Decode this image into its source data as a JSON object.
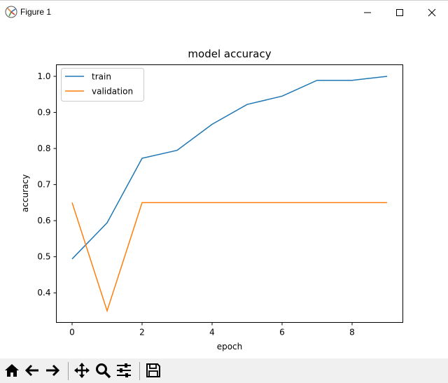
{
  "window": {
    "title": "Figure 1"
  },
  "toolbar": {
    "buttons": [
      "home-icon",
      "back-arrow-icon",
      "forward-arrow-icon",
      "pan-icon",
      "zoom-icon",
      "subplots-config-icon",
      "save-icon"
    ]
  },
  "colors": {
    "train": "#1f77b4",
    "validation": "#ff7f0e"
  },
  "chart_data": {
    "type": "line",
    "title": "model accuracy",
    "xlabel": "epoch",
    "ylabel": "accuracy",
    "x": [
      0,
      1,
      2,
      3,
      4,
      5,
      6,
      7,
      8,
      9
    ],
    "xticks": [
      "0",
      "2",
      "4",
      "6",
      "8"
    ],
    "yticks": [
      "0.4",
      "0.5",
      "0.6",
      "0.7",
      "0.8",
      "0.9",
      "1.0"
    ],
    "xlim": [
      -0.45,
      9.45
    ],
    "ylim": [
      0.318,
      1.032
    ],
    "legend_position": "upper left",
    "grid": false,
    "series": [
      {
        "name": "train",
        "values": [
          0.494,
          0.594,
          0.773,
          0.795,
          0.867,
          0.922,
          0.945,
          0.989,
          0.989,
          1.0
        ]
      },
      {
        "name": "validation",
        "values": [
          0.65,
          0.35,
          0.65,
          0.65,
          0.65,
          0.65,
          0.65,
          0.65,
          0.65,
          0.65
        ]
      }
    ]
  }
}
